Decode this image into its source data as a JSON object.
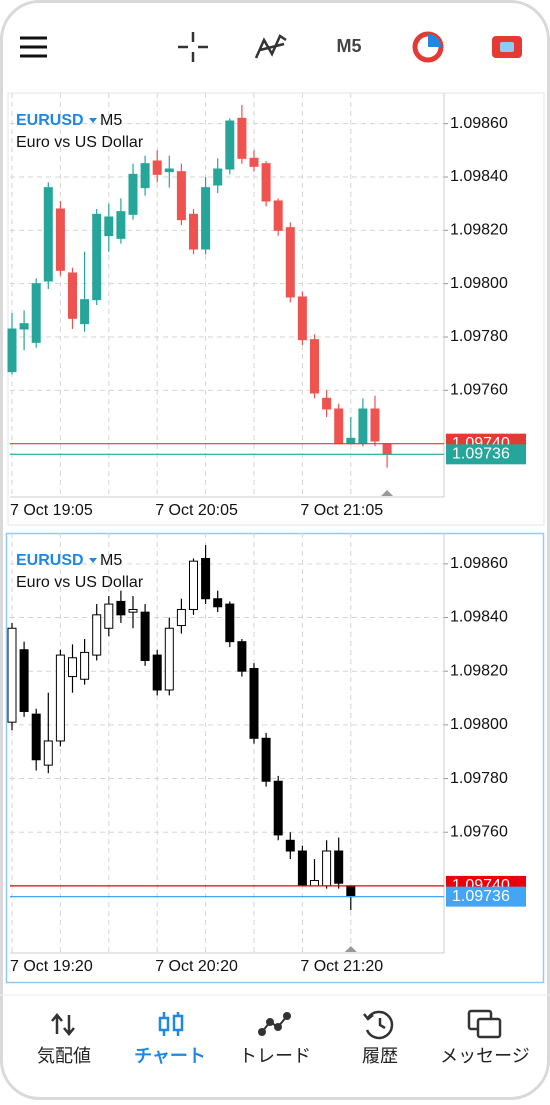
{
  "toolbar": {
    "timeframe": "M5"
  },
  "chart_data": [
    {
      "type": "candlestick",
      "symbol": "EURUSD",
      "timeframe": "M5",
      "subtitle": "Euro vs US Dollar",
      "categories": [
        "7 Oct 19:05",
        null,
        null,
        null,
        null,
        null,
        null,
        null,
        null,
        null,
        null,
        null,
        "7 Oct 20:05",
        null,
        null,
        null,
        null,
        null,
        null,
        null,
        null,
        null,
        null,
        null,
        "7 Oct 21:05",
        null,
        null,
        null,
        null,
        null,
        null,
        null
      ],
      "open": [
        1.09767,
        1.09783,
        1.09778,
        1.09801,
        1.09828,
        1.09804,
        1.09785,
        1.09794,
        1.09818,
        1.09817,
        1.09826,
        1.09836,
        1.09846,
        1.09842,
        1.09842,
        1.09826,
        1.09813,
        1.09837,
        1.09843,
        1.09862,
        1.09847,
        1.09845,
        1.09831,
        1.09821,
        1.09795,
        1.09779,
        1.09757,
        1.09753,
        1.0974,
        1.0974,
        1.09753,
        1.0974
      ],
      "high": [
        1.09789,
        1.0979,
        1.09802,
        1.09838,
        1.09831,
        1.09806,
        1.09812,
        1.09828,
        1.0983,
        1.09832,
        1.09845,
        1.09848,
        1.0985,
        1.09848,
        1.09845,
        1.09828,
        1.0984,
        1.09847,
        1.09862,
        1.09867,
        1.0985,
        1.09846,
        1.09832,
        1.09823,
        1.09797,
        1.09781,
        1.0976,
        1.09755,
        1.0975,
        1.09757,
        1.09758,
        1.0974
      ],
      "low": [
        1.09766,
        1.09775,
        1.09776,
        1.09798,
        1.09803,
        1.09783,
        1.09782,
        1.09792,
        1.09812,
        1.09815,
        1.09824,
        1.09833,
        1.09838,
        1.09836,
        1.09822,
        1.09811,
        1.09811,
        1.09834,
        1.09841,
        1.09845,
        1.09842,
        1.09829,
        1.09818,
        1.09793,
        1.09777,
        1.09757,
        1.0975,
        1.0974,
        1.0974,
        1.09739,
        1.09739,
        1.09731
      ],
      "close": [
        1.09783,
        1.09785,
        1.098,
        1.09836,
        1.09805,
        1.09787,
        1.09794,
        1.09826,
        1.09825,
        1.09827,
        1.09841,
        1.09845,
        1.09841,
        1.09843,
        1.09824,
        1.09813,
        1.09836,
        1.09843,
        1.09861,
        1.09847,
        1.09844,
        1.09831,
        1.0982,
        1.09795,
        1.09779,
        1.09759,
        1.09753,
        1.0974,
        1.09742,
        1.09753,
        1.09741,
        1.09736
      ],
      "up_color": "#26a69a",
      "down_color": "#ef5350",
      "outline": null,
      "ylim": [
        1.0972,
        1.0987
      ],
      "yticks": [
        {
          "value": 1.0976,
          "label": "1.09760"
        },
        {
          "value": 1.0978,
          "label": "1.09780"
        },
        {
          "value": 1.098,
          "label": "1.09800"
        },
        {
          "value": 1.0982,
          "label": "1.09820"
        },
        {
          "value": 1.0984,
          "label": "1.09840"
        },
        {
          "value": 1.0986,
          "label": "1.09860"
        }
      ],
      "grid": true,
      "price_lines": [
        {
          "value": 1.0974,
          "label": "1.09740",
          "color": "#e53935"
        },
        {
          "value": 1.09736,
          "label": "1.09736",
          "color": "#26a69a"
        }
      ]
    },
    {
      "type": "candlestick",
      "symbol": "EURUSD",
      "timeframe": "M5",
      "subtitle": "Euro vs US Dollar",
      "categories": [
        "7 Oct 19:20",
        null,
        null,
        null,
        null,
        null,
        null,
        null,
        null,
        null,
        null,
        null,
        "7 Oct 20:20",
        null,
        null,
        null,
        null,
        null,
        null,
        null,
        null,
        null,
        null,
        null,
        "7 Oct 21:20",
        null,
        null,
        null,
        null
      ],
      "open": [
        1.09801,
        1.09828,
        1.09804,
        1.09785,
        1.09794,
        1.09818,
        1.09817,
        1.09826,
        1.09836,
        1.09846,
        1.09842,
        1.09842,
        1.09826,
        1.09813,
        1.09837,
        1.09843,
        1.09862,
        1.09847,
        1.09845,
        1.09831,
        1.09821,
        1.09795,
        1.09779,
        1.09757,
        1.09753,
        1.0974,
        1.0974,
        1.09753,
        1.0974
      ],
      "high": [
        1.09838,
        1.09831,
        1.09806,
        1.09812,
        1.09828,
        1.0983,
        1.09832,
        1.09845,
        1.09848,
        1.0985,
        1.09848,
        1.09845,
        1.09828,
        1.0984,
        1.09847,
        1.09862,
        1.09867,
        1.0985,
        1.09846,
        1.09832,
        1.09823,
        1.09797,
        1.09781,
        1.0976,
        1.09755,
        1.0975,
        1.09757,
        1.09758,
        1.0974
      ],
      "low": [
        1.09798,
        1.09803,
        1.09783,
        1.09782,
        1.09792,
        1.09812,
        1.09815,
        1.09824,
        1.09833,
        1.09838,
        1.09836,
        1.09822,
        1.09811,
        1.09811,
        1.09834,
        1.09841,
        1.09845,
        1.09842,
        1.09829,
        1.09818,
        1.09793,
        1.09777,
        1.09757,
        1.0975,
        1.0974,
        1.0974,
        1.09739,
        1.09739,
        1.09731
      ],
      "close": [
        1.09836,
        1.09805,
        1.09787,
        1.09794,
        1.09826,
        1.09825,
        1.09827,
        1.09841,
        1.09845,
        1.09841,
        1.09843,
        1.09824,
        1.09813,
        1.09836,
        1.09843,
        1.09861,
        1.09847,
        1.09844,
        1.09831,
        1.0982,
        1.09795,
        1.09779,
        1.09759,
        1.09753,
        1.0974,
        1.09742,
        1.09753,
        1.09741,
        1.09736
      ],
      "up_color": "#ffffff",
      "down_color": "#000000",
      "outline": "#000000",
      "ylim": [
        1.09715,
        1.0987
      ],
      "yticks": [
        {
          "value": 1.0976,
          "label": "1.09760"
        },
        {
          "value": 1.0978,
          "label": "1.09780"
        },
        {
          "value": 1.098,
          "label": "1.09800"
        },
        {
          "value": 1.0982,
          "label": "1.09820"
        },
        {
          "value": 1.0984,
          "label": "1.09840"
        },
        {
          "value": 1.0986,
          "label": "1.09860"
        }
      ],
      "grid": true,
      "price_lines": [
        {
          "value": 1.0974,
          "label": "1.09740",
          "color": "#e8000b"
        },
        {
          "value": 1.09736,
          "label": "1.09736",
          "color": "#42a5f5"
        }
      ]
    }
  ],
  "nav": {
    "items": [
      "気配値",
      "チャート",
      "トレード",
      "履歴",
      "メッセージ"
    ],
    "active": 1
  }
}
